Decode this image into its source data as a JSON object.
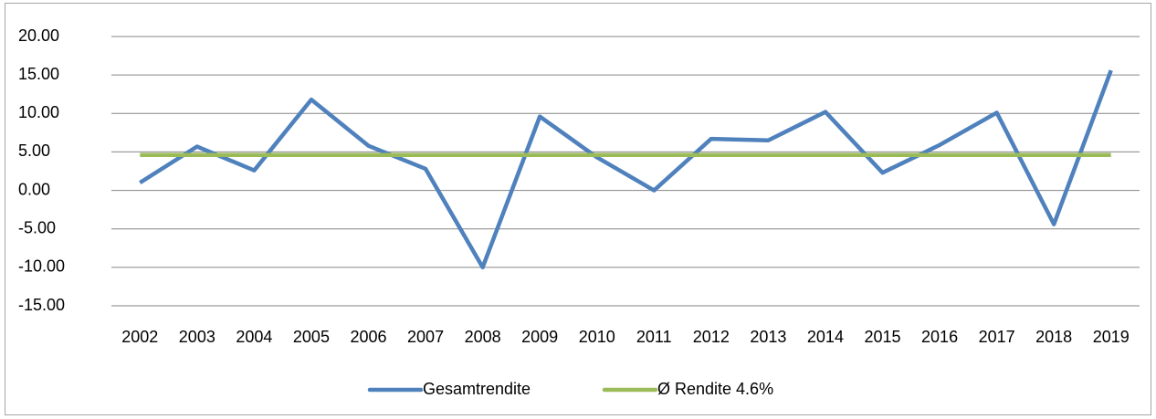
{
  "chart_data": {
    "type": "line",
    "categories": [
      "2002",
      "2003",
      "2004",
      "2005",
      "2006",
      "2007",
      "2008",
      "2009",
      "2010",
      "2011",
      "2012",
      "2013",
      "2014",
      "2015",
      "2016",
      "2017",
      "2018",
      "2019"
    ],
    "series": [
      {
        "name": "Gesamtrendite",
        "color": "#4f81bd",
        "values": [
          1.0,
          5.7,
          2.6,
          11.8,
          5.8,
          2.8,
          -10.0,
          9.6,
          4.3,
          0.0,
          6.7,
          6.5,
          10.2,
          2.3,
          5.9,
          10.1,
          -4.4,
          15.6
        ]
      },
      {
        "name": "Ø Rendite 4.6%",
        "color": "#9bbb59",
        "values": [
          4.6,
          4.6,
          4.6,
          4.6,
          4.6,
          4.6,
          4.6,
          4.6,
          4.6,
          4.6,
          4.6,
          4.6,
          4.6,
          4.6,
          4.6,
          4.6,
          4.6,
          4.6
        ]
      }
    ],
    "ylim": [
      -15,
      20
    ],
    "yticks": [
      {
        "value": -15,
        "label": "-15.00"
      },
      {
        "value": -10,
        "label": "-10.00"
      },
      {
        "value": -5,
        "label": "-5.00"
      },
      {
        "value": 0,
        "label": "0.00"
      },
      {
        "value": 5,
        "label": "5.00"
      },
      {
        "value": 10,
        "label": "10.00"
      },
      {
        "value": 15,
        "label": "15.00"
      },
      {
        "value": 20,
        "label": "20.00"
      }
    ],
    "grid": true,
    "legend": "bottom"
  }
}
